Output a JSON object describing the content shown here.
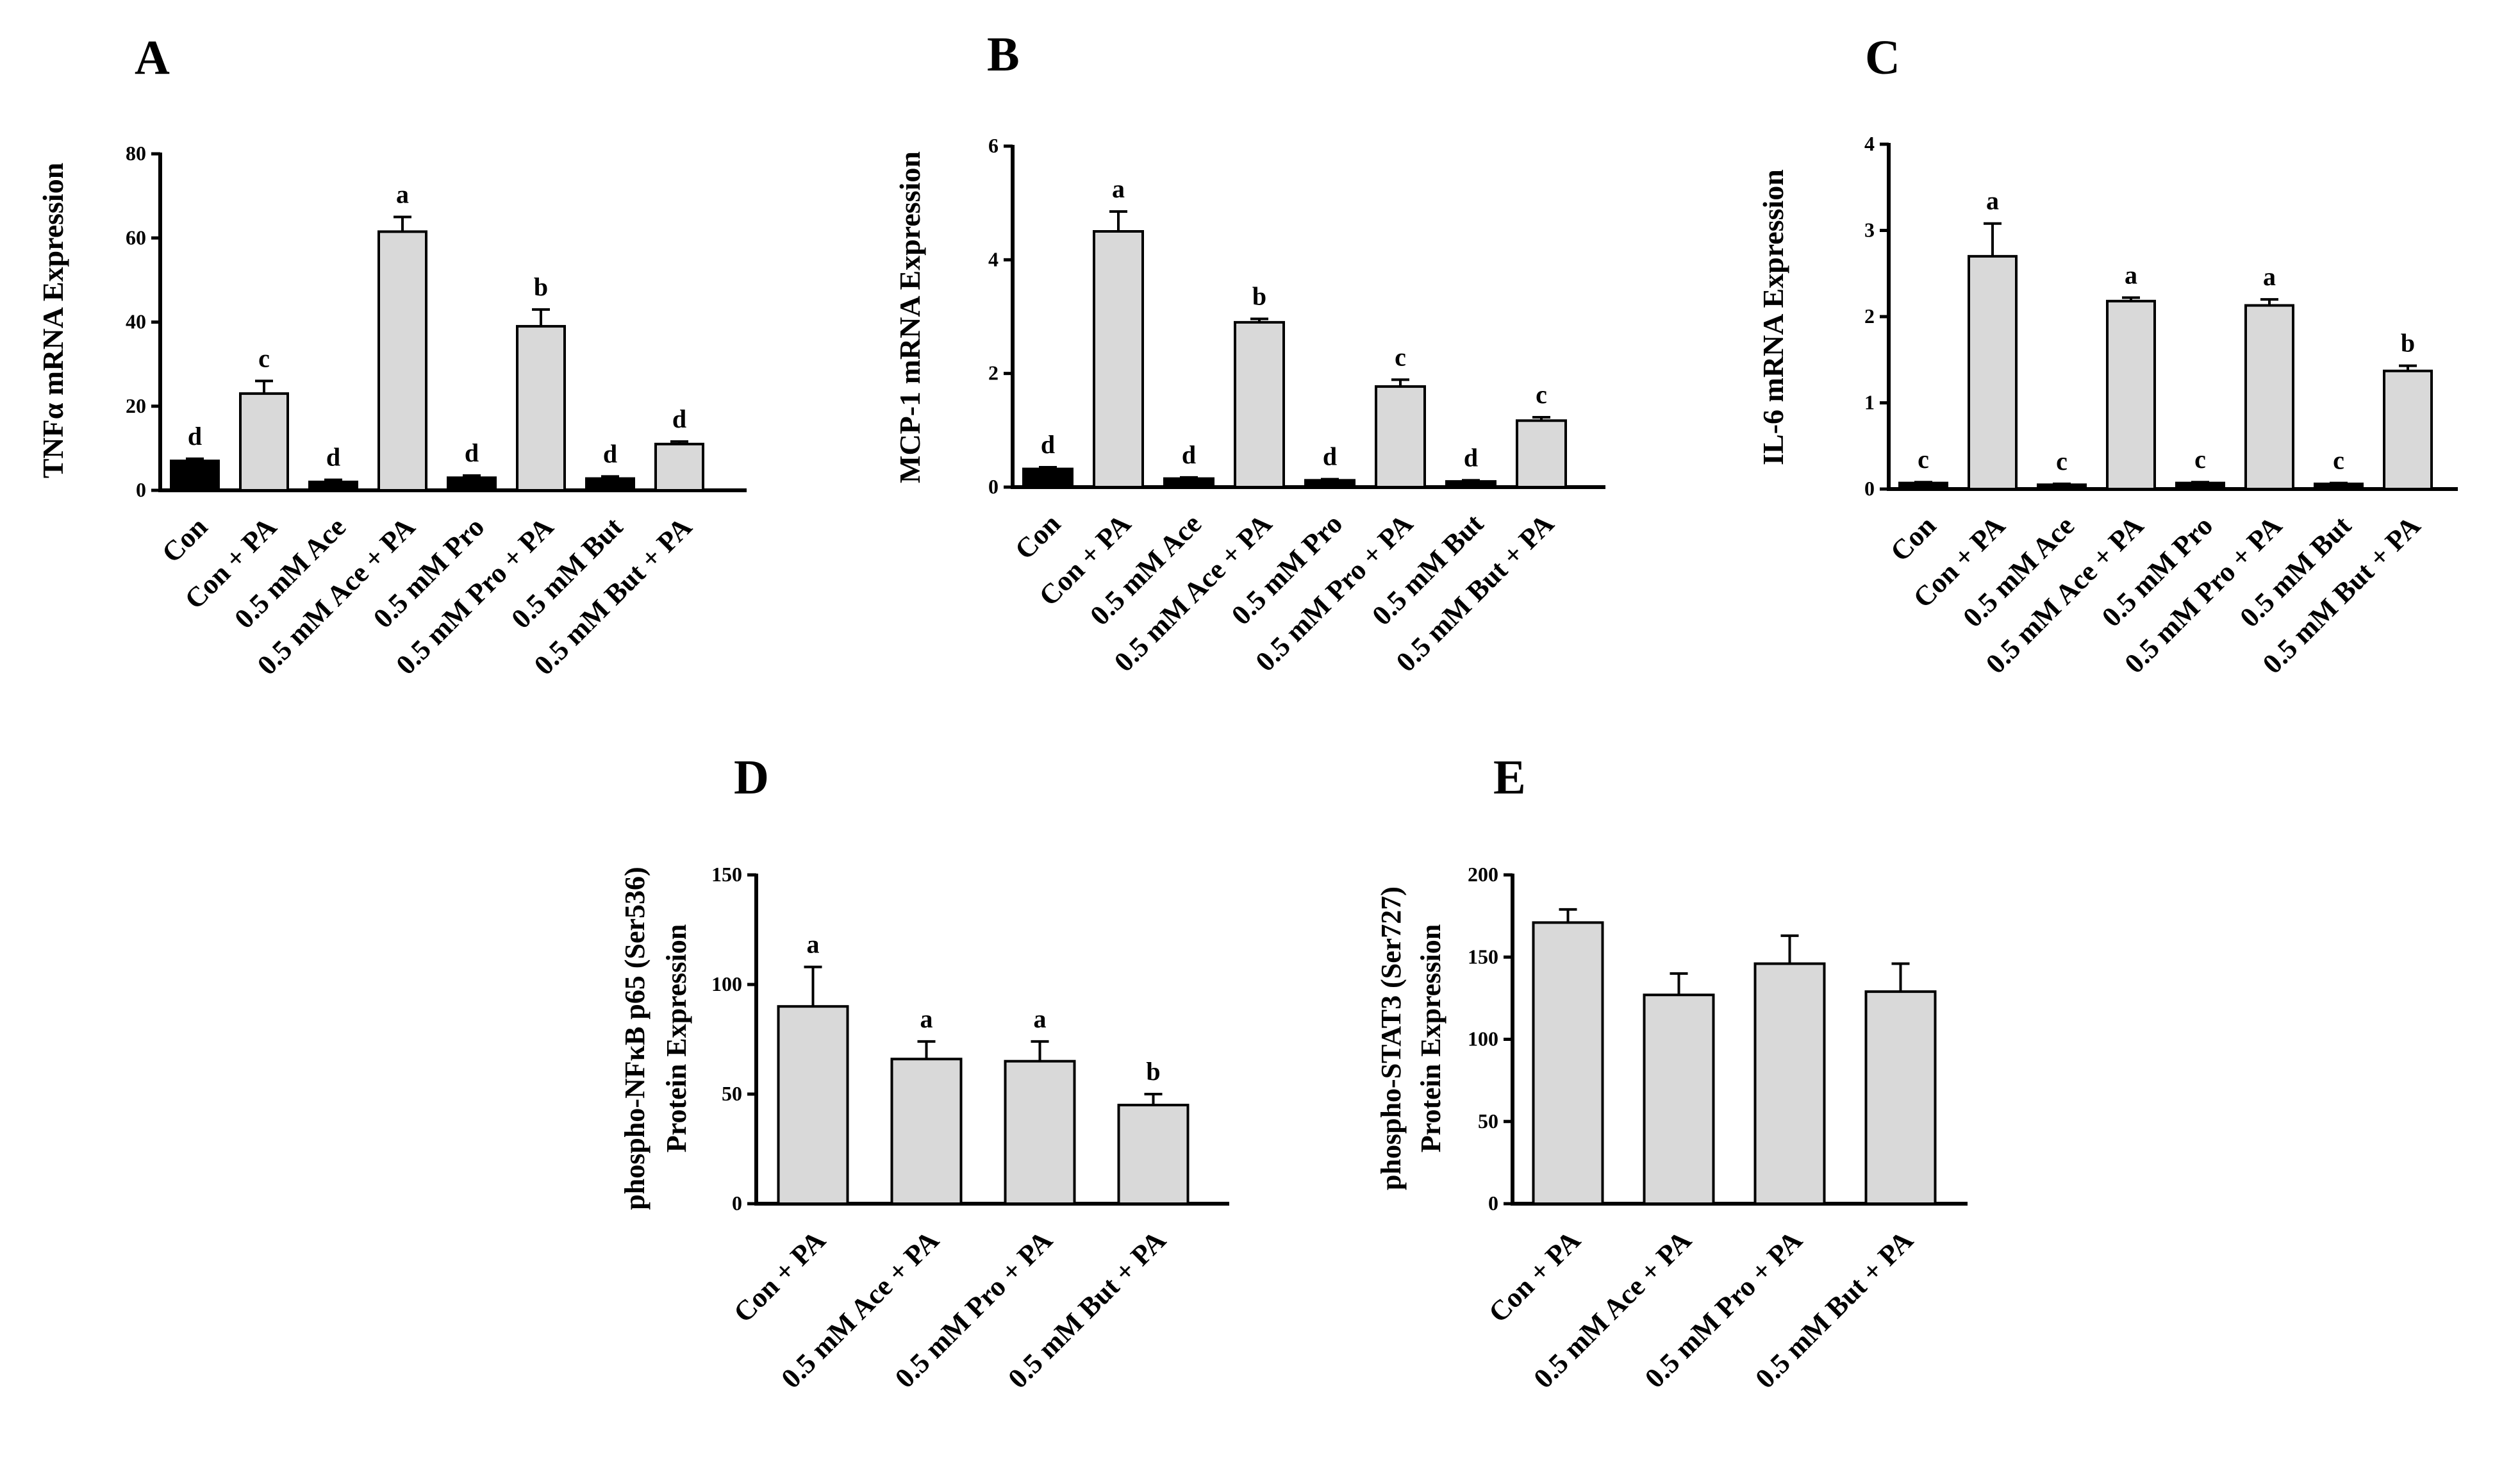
{
  "colors": {
    "dark_bar": "#000000",
    "light_bar": "#d9d9d9",
    "axis": "#000000"
  },
  "chart_data": [
    {
      "type": "bar",
      "panel": "A",
      "ylabel": "TNFα mRNA Expression",
      "ylim": [
        0,
        80
      ],
      "yticks": [
        "0",
        "20",
        "40",
        "60",
        "80"
      ],
      "categories": [
        "Con",
        "Con + PA",
        "0.5 mM Ace",
        "0.5 mM Ace + PA",
        "0.5 mM Pro",
        "0.5 mM Pro + PA",
        "0.5 mM But",
        "0.5 mM But + PA"
      ],
      "values": [
        7,
        23,
        2,
        61.5,
        3,
        39,
        2.8,
        11
      ],
      "errors": [
        0.5,
        3,
        0.5,
        3.5,
        0.5,
        4,
        0.5,
        0.6
      ],
      "letters": [
        "d",
        "c",
        "d",
        "a",
        "d",
        "b",
        "d",
        "d"
      ],
      "bar_colors": [
        "dark",
        "light",
        "dark",
        "light",
        "dark",
        "light",
        "dark",
        "light"
      ]
    },
    {
      "type": "bar",
      "panel": "B",
      "ylabel": "MCP-1 mRNA Expression",
      "ylim": [
        0,
        6
      ],
      "yticks": [
        "0",
        "2",
        "4",
        "6"
      ],
      "categories": [
        "Con",
        "Con + PA",
        "0.5 mM Ace",
        "0.5 mM Ace + PA",
        "0.5 mM Pro",
        "0.5 mM Pro + PA",
        "0.5 mM But",
        "0.5 mM But + PA"
      ],
      "values": [
        0.32,
        4.5,
        0.15,
        2.9,
        0.12,
        1.77,
        0.1,
        1.17
      ],
      "errors": [
        0.03,
        0.35,
        0.02,
        0.06,
        0.02,
        0.12,
        0.02,
        0.06
      ],
      "letters": [
        "d",
        "a",
        "d",
        "b",
        "d",
        "c",
        "d",
        "c"
      ],
      "bar_colors": [
        "dark",
        "light",
        "dark",
        "light",
        "dark",
        "light",
        "dark",
        "light"
      ]
    },
    {
      "type": "bar",
      "panel": "C",
      "ylabel": "IL-6 mRNA Expression",
      "ylim": [
        0,
        4
      ],
      "yticks": [
        "0",
        "1",
        "2",
        "3",
        "4"
      ],
      "categories": [
        "Con",
        "Con + PA",
        "0.5 mM Ace",
        "0.5 mM Ace + PA",
        "0.5 mM Pro",
        "0.5 mM Pro + PA",
        "0.5 mM But",
        "0.5 mM But + PA"
      ],
      "values": [
        0.07,
        2.7,
        0.05,
        2.18,
        0.07,
        2.13,
        0.06,
        1.37
      ],
      "errors": [
        0.01,
        0.38,
        0.01,
        0.04,
        0.01,
        0.07,
        0.01,
        0.06
      ],
      "letters": [
        "c",
        "a",
        "c",
        "a",
        "c",
        "a",
        "c",
        "b"
      ],
      "bar_colors": [
        "dark",
        "light",
        "dark",
        "light",
        "dark",
        "light",
        "dark",
        "light"
      ]
    },
    {
      "type": "bar",
      "panel": "D",
      "ylabel": "phospho-NFκB p65 (Ser536)",
      "ylabel2": "Protein  Expression",
      "ylim": [
        0,
        150
      ],
      "yticks": [
        "0",
        "50",
        "100",
        "150"
      ],
      "categories": [
        "Con + PA",
        "0.5 mM Ace + PA",
        "0.5 mM Pro + PA",
        "0.5 mM But + PA"
      ],
      "values": [
        90,
        66,
        65,
        45
      ],
      "errors": [
        18,
        8,
        9,
        5
      ],
      "letters": [
        "a",
        "a",
        "a",
        "b"
      ],
      "bar_colors": [
        "light",
        "light",
        "light",
        "light"
      ]
    },
    {
      "type": "bar",
      "panel": "E",
      "ylabel": "phospho-STAT3  (Ser727)",
      "ylabel2": "Protein Expression",
      "ylim": [
        0,
        200
      ],
      "yticks": [
        "0",
        "50",
        "100",
        "150",
        "200"
      ],
      "categories": [
        "Con + PA",
        "0.5 mM Ace + PA",
        "0.5 mM Pro + PA",
        "0.5 mM But + PA"
      ],
      "values": [
        171,
        127,
        146,
        129
      ],
      "errors": [
        8,
        13,
        17,
        17
      ],
      "letters": [
        "",
        "",
        "",
        ""
      ],
      "bar_colors": [
        "light",
        "light",
        "light",
        "light"
      ]
    }
  ]
}
